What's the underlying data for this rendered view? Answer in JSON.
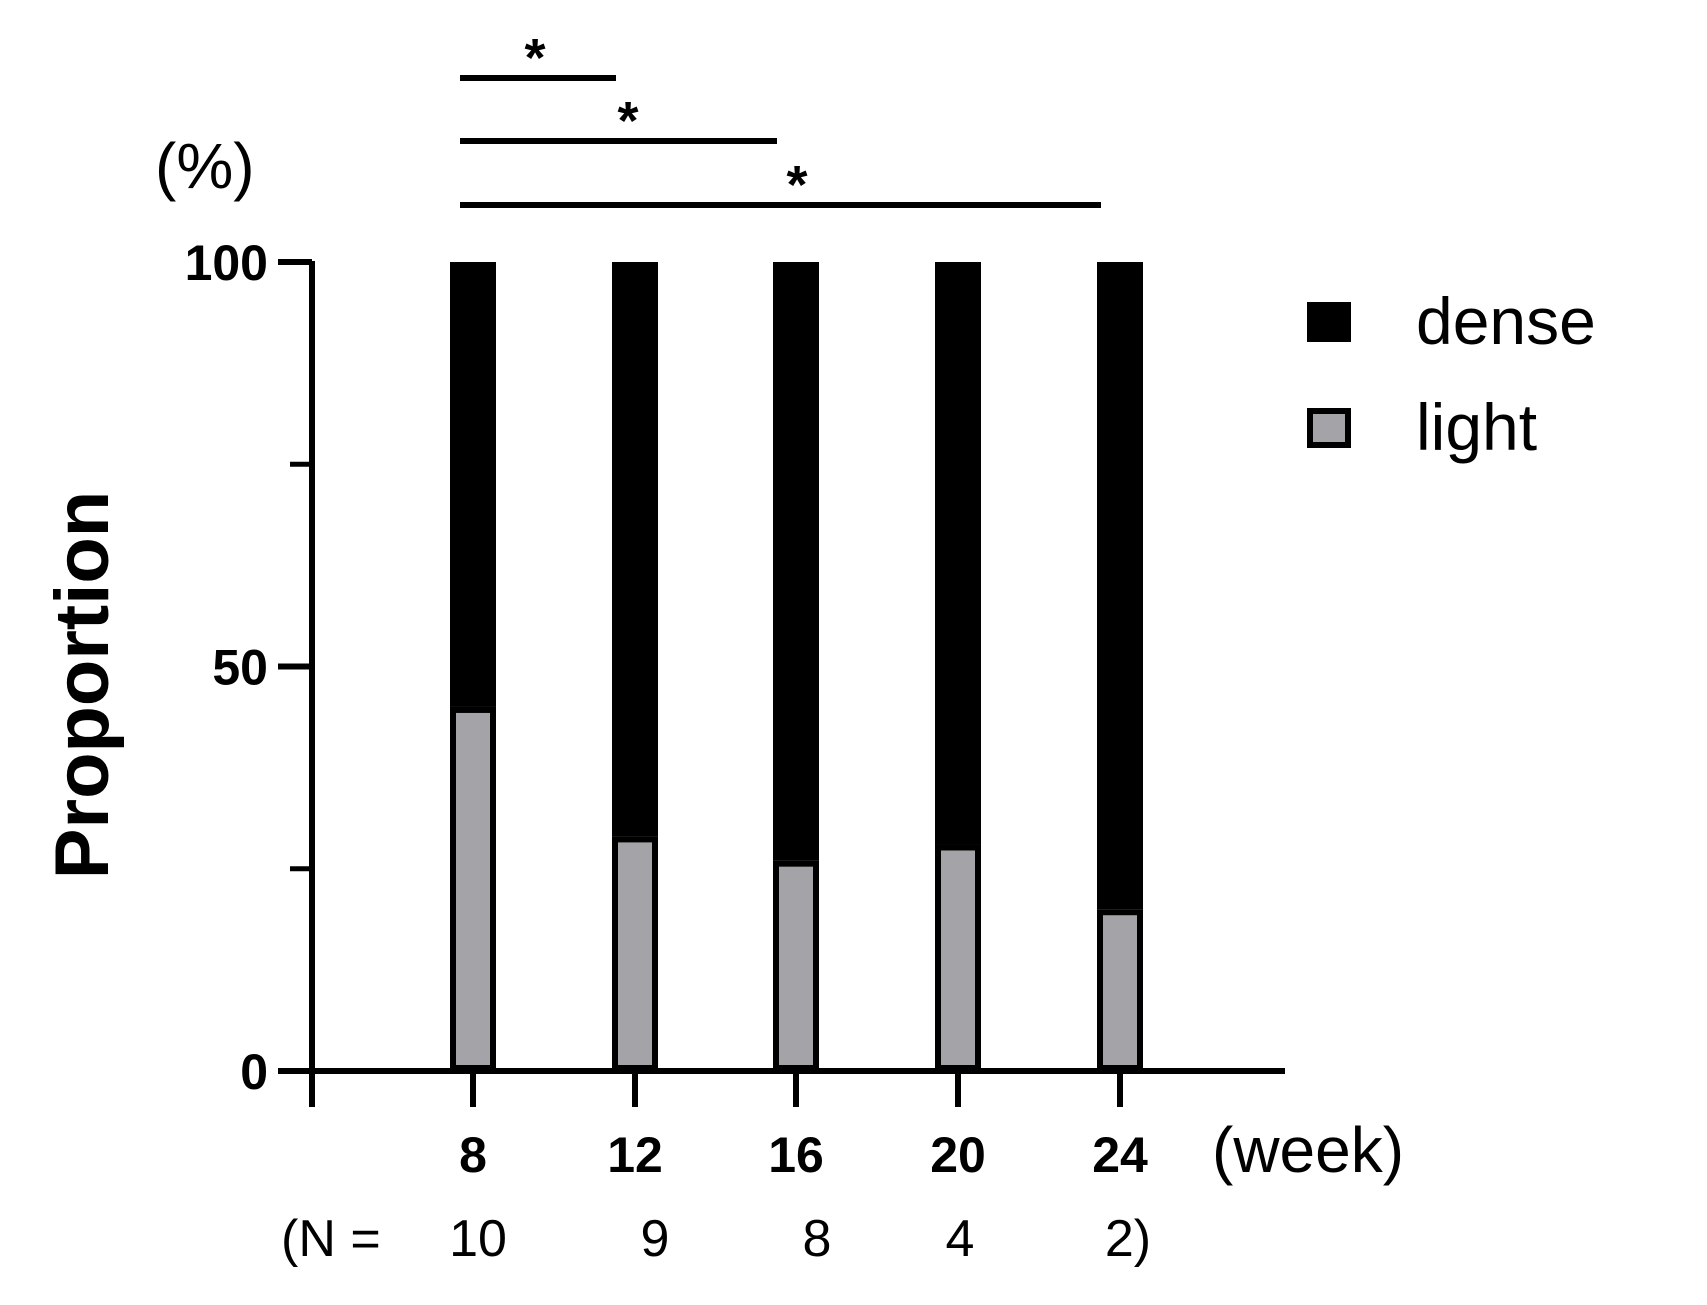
{
  "chart_data": {
    "type": "bar",
    "stacked": true,
    "title": "",
    "xlabel": "",
    "ylabel": "Proportion",
    "yunit": "(%)",
    "xunit": "(week)",
    "ylim": [
      0,
      100
    ],
    "yticks_major": [
      0,
      50,
      100
    ],
    "yticks_minor": [
      25,
      75
    ],
    "categories": [
      "8",
      "12",
      "16",
      "20",
      "24"
    ],
    "n_values": [
      "10",
      "9",
      "8",
      "4",
      "2)"
    ],
    "n_prefix": "(N =",
    "series": [
      {
        "name": "light",
        "color": "#a3a3a8",
        "values": [
          45,
          29,
          26,
          28,
          20
        ]
      },
      {
        "name": "dense",
        "color": "#000000",
        "values": [
          55,
          71,
          74,
          72,
          80
        ]
      }
    ],
    "legend": {
      "placement": "right",
      "entries": [
        {
          "label": "dense",
          "color": "#000000"
        },
        {
          "label": "light",
          "color": "#a3a3a8"
        }
      ]
    },
    "significance": [
      {
        "from": "8",
        "to": "12",
        "label": "*"
      },
      {
        "from": "8",
        "to": "16",
        "label": "*"
      },
      {
        "from": "8",
        "to": "24",
        "label": "*"
      }
    ]
  }
}
